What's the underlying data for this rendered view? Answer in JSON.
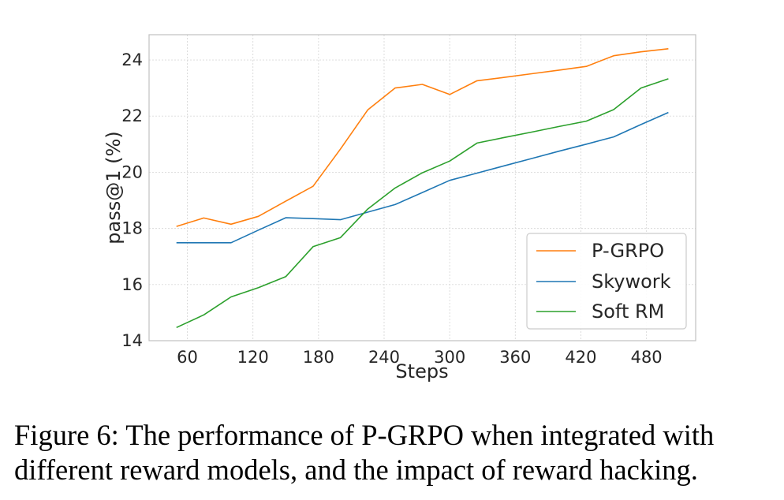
{
  "chart_data": {
    "type": "line",
    "title": "",
    "xlabel": "Steps",
    "ylabel": "pass@1 (%)",
    "xlim": [
      25,
      525
    ],
    "ylim": [
      14,
      24.9
    ],
    "xticks": [
      60,
      120,
      180,
      240,
      300,
      360,
      420,
      480
    ],
    "yticks": [
      14,
      16,
      18,
      20,
      22,
      24
    ],
    "grid": true,
    "legend_position": "lower-right",
    "series": [
      {
        "name": "P-GRPO",
        "color": "#ff7f0e",
        "x": [
          50,
          75,
          100,
          125,
          150,
          175,
          200,
          225,
          250,
          275,
          300,
          325,
          350,
          375,
          400,
          425,
          450,
          475,
          500
        ],
        "y": [
          18.07,
          18.37,
          18.15,
          18.43,
          18.97,
          19.5,
          20.82,
          22.22,
          23.0,
          23.13,
          22.77,
          23.26,
          23.38,
          23.51,
          23.64,
          23.77,
          24.15,
          24.29,
          24.4
        ]
      },
      {
        "name": "Skywork",
        "color": "#1f77b4",
        "x": [
          50,
          75,
          100,
          125,
          150,
          175,
          200,
          225,
          250,
          275,
          300,
          325,
          350,
          375,
          400,
          425,
          450,
          475,
          500
        ],
        "y": [
          17.49,
          17.49,
          17.49,
          17.94,
          18.38,
          18.35,
          18.31,
          18.58,
          18.85,
          19.28,
          19.71,
          19.97,
          20.23,
          20.49,
          20.75,
          21.0,
          21.26,
          21.7,
          22.13
        ]
      },
      {
        "name": "Soft RM",
        "color": "#2ca02c",
        "x": [
          50,
          75,
          100,
          125,
          150,
          175,
          200,
          225,
          250,
          275,
          300,
          325,
          350,
          375,
          400,
          425,
          450,
          475,
          500
        ],
        "y": [
          14.47,
          14.92,
          15.56,
          15.89,
          16.28,
          17.35,
          17.67,
          18.69,
          19.44,
          19.98,
          20.4,
          21.04,
          21.24,
          21.43,
          21.63,
          21.82,
          22.23,
          23.0,
          23.33
        ]
      }
    ]
  },
  "caption": {
    "line1": "Figure 6: The performance of P-GRPO when integrated with",
    "line2": "different reward models, and the impact of reward hacking."
  }
}
